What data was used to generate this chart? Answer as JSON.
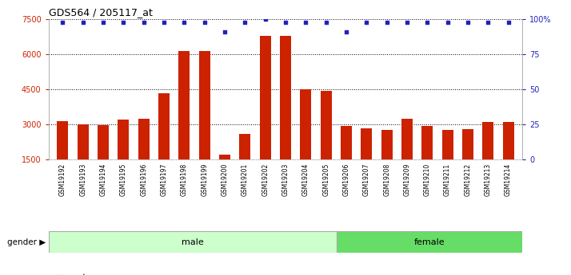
{
  "title": "GDS564 / 205117_at",
  "samples": [
    "GSM19192",
    "GSM19193",
    "GSM19194",
    "GSM19195",
    "GSM19196",
    "GSM19197",
    "GSM19198",
    "GSM19199",
    "GSM19200",
    "GSM19201",
    "GSM19202",
    "GSM19203",
    "GSM19204",
    "GSM19205",
    "GSM19206",
    "GSM19207",
    "GSM19208",
    "GSM19209",
    "GSM19210",
    "GSM19211",
    "GSM19212",
    "GSM19213",
    "GSM19214"
  ],
  "counts": [
    3150,
    3020,
    2960,
    3200,
    3240,
    4350,
    6150,
    6150,
    1700,
    2600,
    6800,
    6800,
    4500,
    4450,
    2950,
    2830,
    2780,
    3230,
    2950,
    2750,
    2800,
    3100,
    3100
  ],
  "percentile_ranks": [
    98,
    98,
    98,
    98,
    98,
    98,
    98,
    98,
    91,
    98,
    100,
    98,
    98,
    98,
    91,
    98,
    98,
    98,
    98,
    98,
    98,
    98,
    98
  ],
  "gender": [
    "male",
    "male",
    "male",
    "male",
    "male",
    "male",
    "male",
    "male",
    "male",
    "male",
    "male",
    "male",
    "male",
    "male",
    "female",
    "female",
    "female",
    "female",
    "female",
    "female",
    "female",
    "female",
    "female"
  ],
  "male_color": "#ccffcc",
  "female_color": "#66dd66",
  "bar_color": "#cc2200",
  "dot_color": "#2222bb",
  "ylim_left": [
    1500,
    7500
  ],
  "ylim_right": [
    0,
    100
  ],
  "yticks_left": [
    1500,
    3000,
    4500,
    6000,
    7500
  ],
  "yticks_right": [
    0,
    25,
    50,
    75,
    100
  ],
  "grid_values": [
    3000,
    4500,
    6000,
    7500
  ],
  "plot_bg_color": "#ffffff",
  "xtick_bg_color": "#e0e0e0",
  "fig_bg_color": "#ffffff"
}
